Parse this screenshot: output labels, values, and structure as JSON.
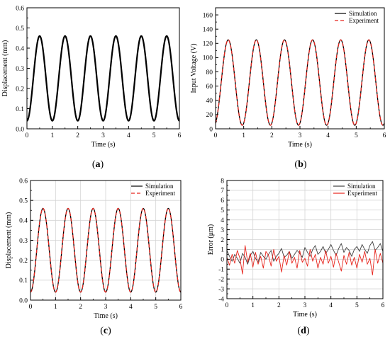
{
  "charts": [
    {
      "id": "a",
      "caption": "(a)",
      "type": "line",
      "xlabel": "Time (s)",
      "ylabel": "Displacement (mm)",
      "xlim": [
        0,
        6
      ],
      "ylim": [
        0,
        0.6
      ],
      "xticks": [
        0,
        1,
        2,
        3,
        4,
        5,
        6
      ],
      "yticks": [
        0.0,
        0.1,
        0.2,
        0.3,
        0.4,
        0.5,
        0.6
      ],
      "ytick_labels": [
        "0.0",
        "0.1",
        "0.2",
        "0.3",
        "0.4",
        "0.5",
        "0.6"
      ],
      "grid": false,
      "legend": null,
      "series": [
        {
          "kind": "sine",
          "color": "#000000",
          "width": 2.2,
          "dash": "",
          "mean": 0.25,
          "amp": 0.21,
          "period": 1.0,
          "peak_at": 0.5
        }
      ]
    },
    {
      "id": "b",
      "caption": "(b)",
      "type": "line",
      "xlabel": "Time (s)",
      "ylabel": "Input Voltage (V)",
      "xlim": [
        0,
        6
      ],
      "ylim": [
        0,
        170
      ],
      "xticks": [
        0,
        1,
        2,
        3,
        4,
        5,
        6
      ],
      "yticks": [
        0,
        20,
        40,
        60,
        80,
        100,
        120,
        140,
        160
      ],
      "ytick_labels": [
        "0",
        "20",
        "40",
        "60",
        "80",
        "100",
        "120",
        "140",
        "160"
      ],
      "grid": false,
      "legend": "top-right",
      "series": [
        {
          "name": "Simulation",
          "kind": "sine",
          "color": "#000000",
          "width": 1.3,
          "dash": "",
          "mean": 65,
          "amp": 60,
          "period": 1.0,
          "peak_at": 0.45
        },
        {
          "name": "Experiment",
          "kind": "sine",
          "color": "#e8251d",
          "width": 1.3,
          "dash": "5,3",
          "mean": 65,
          "amp": 60,
          "period": 1.0,
          "peak_at": 0.45
        }
      ]
    },
    {
      "id": "c",
      "caption": "(c)",
      "type": "line",
      "xlabel": "Time (s)",
      "ylabel": "Displacement (mm)",
      "xlim": [
        0,
        6
      ],
      "ylim": [
        0,
        0.6
      ],
      "xticks": [
        0,
        1,
        2,
        3,
        4,
        5,
        6
      ],
      "yticks": [
        0.0,
        0.1,
        0.2,
        0.3,
        0.4,
        0.5,
        0.6
      ],
      "ytick_labels": [
        "0.0",
        "0.1",
        "0.2",
        "0.3",
        "0.4",
        "0.5",
        "0.6"
      ],
      "grid": true,
      "legend": "top-right",
      "series": [
        {
          "name": "Simulation",
          "kind": "sine",
          "color": "#000000",
          "width": 1.3,
          "dash": "",
          "mean": 0.25,
          "amp": 0.21,
          "period": 1.0,
          "peak_at": 0.5
        },
        {
          "name": "Experiment",
          "kind": "sine",
          "color": "#e8251d",
          "width": 1.3,
          "dash": "5,3",
          "mean": 0.25,
          "amp": 0.21,
          "period": 1.0,
          "peak_at": 0.5
        }
      ]
    },
    {
      "id": "d",
      "caption": "(d)",
      "type": "line",
      "xlabel": "Time (s)",
      "ylabel": "Error (μm)",
      "xlim": [
        0,
        6
      ],
      "ylim": [
        -4,
        8
      ],
      "xticks": [
        0,
        1,
        2,
        3,
        4,
        5,
        6
      ],
      "yticks": [
        -4,
        -3,
        -2,
        -1,
        0,
        1,
        2,
        3,
        4,
        5,
        6,
        7,
        8
      ],
      "ytick_labels": [
        "-4",
        "-3",
        "-2",
        "-1",
        "0",
        "1",
        "2",
        "3",
        "4",
        "5",
        "6",
        "7",
        "8"
      ],
      "grid": true,
      "legend": "top-right",
      "series": [
        {
          "name": "Simulation",
          "kind": "points",
          "color": "#404040",
          "width": 0.9,
          "dash": "",
          "x": [
            0.0,
            0.1,
            0.2,
            0.3,
            0.4,
            0.5,
            0.6,
            0.7,
            0.8,
            0.9,
            1.0,
            1.1,
            1.2,
            1.3,
            1.4,
            1.5,
            1.6,
            1.7,
            1.8,
            1.9,
            2.0,
            2.1,
            2.2,
            2.3,
            2.4,
            2.5,
            2.6,
            2.7,
            2.8,
            2.9,
            3.0,
            3.1,
            3.2,
            3.3,
            3.4,
            3.5,
            3.6,
            3.7,
            3.8,
            3.9,
            4.0,
            4.1,
            4.2,
            4.3,
            4.4,
            4.5,
            4.6,
            4.7,
            4.8,
            4.9,
            5.0,
            5.1,
            5.2,
            5.3,
            5.4,
            5.5,
            5.6,
            5.7,
            5.8,
            5.9,
            6.0
          ],
          "y": [
            0.9,
            0.3,
            -0.2,
            0.5,
            0.1,
            -0.4,
            0.6,
            0.2,
            -0.5,
            0.4,
            0.8,
            0.1,
            -0.3,
            0.7,
            0.3,
            0.0,
            0.5,
            0.9,
            -0.2,
            0.3,
            0.6,
            1.1,
            0.2,
            0.4,
            0.8,
            0.1,
            0.5,
            0.9,
            0.6,
            0.2,
            1.2,
            0.7,
            0.3,
            1.0,
            1.4,
            0.5,
            0.8,
            1.3,
            0.6,
            1.0,
            1.5,
            0.9,
            0.4,
            1.1,
            1.6,
            0.7,
            1.2,
            0.9,
            0.3,
            1.0,
            1.3,
            0.8,
            1.5,
            1.0,
            0.6,
            1.4,
            1.8,
            0.9,
            1.2,
            1.6,
            0.8
          ]
        },
        {
          "name": "Experiment",
          "kind": "points",
          "color": "#e8251d",
          "width": 0.9,
          "dash": "",
          "x": [
            0.0,
            0.1,
            0.2,
            0.3,
            0.4,
            0.5,
            0.6,
            0.7,
            0.8,
            0.9,
            1.0,
            1.1,
            1.2,
            1.3,
            1.4,
            1.5,
            1.6,
            1.7,
            1.8,
            1.9,
            2.0,
            2.1,
            2.2,
            2.3,
            2.4,
            2.5,
            2.6,
            2.7,
            2.8,
            2.9,
            3.0,
            3.1,
            3.2,
            3.3,
            3.4,
            3.5,
            3.6,
            3.7,
            3.8,
            3.9,
            4.0,
            4.1,
            4.2,
            4.3,
            4.4,
            4.5,
            4.6,
            4.7,
            4.8,
            4.9,
            5.0,
            5.1,
            5.2,
            5.3,
            5.4,
            5.5,
            5.6,
            5.7,
            5.8,
            5.9,
            6.0
          ],
          "y": [
            0.2,
            -0.6,
            0.5,
            -0.4,
            0.9,
            0.1,
            -1.5,
            1.4,
            -0.3,
            0.6,
            -0.8,
            0.7,
            -0.5,
            0.3,
            -0.9,
            0.8,
            0.4,
            -0.7,
            1.0,
            -0.2,
            0.3,
            -1.3,
            0.4,
            -0.6,
            0.8,
            -0.4,
            0.2,
            -0.9,
            0.9,
            -0.3,
            0.1,
            -0.7,
            1.0,
            -0.2,
            0.5,
            -0.9,
            0.2,
            -0.5,
            0.9,
            -0.4,
            0.3,
            -0.8,
            0.6,
            -0.3,
            -1.2,
            0.4,
            -0.5,
            0.7,
            -0.6,
            0.2,
            -0.9,
            0.5,
            -0.3,
            0.8,
            -0.5,
            0.1,
            -1.6,
            1.0,
            -0.4,
            0.6,
            -0.4
          ]
        }
      ]
    }
  ]
}
